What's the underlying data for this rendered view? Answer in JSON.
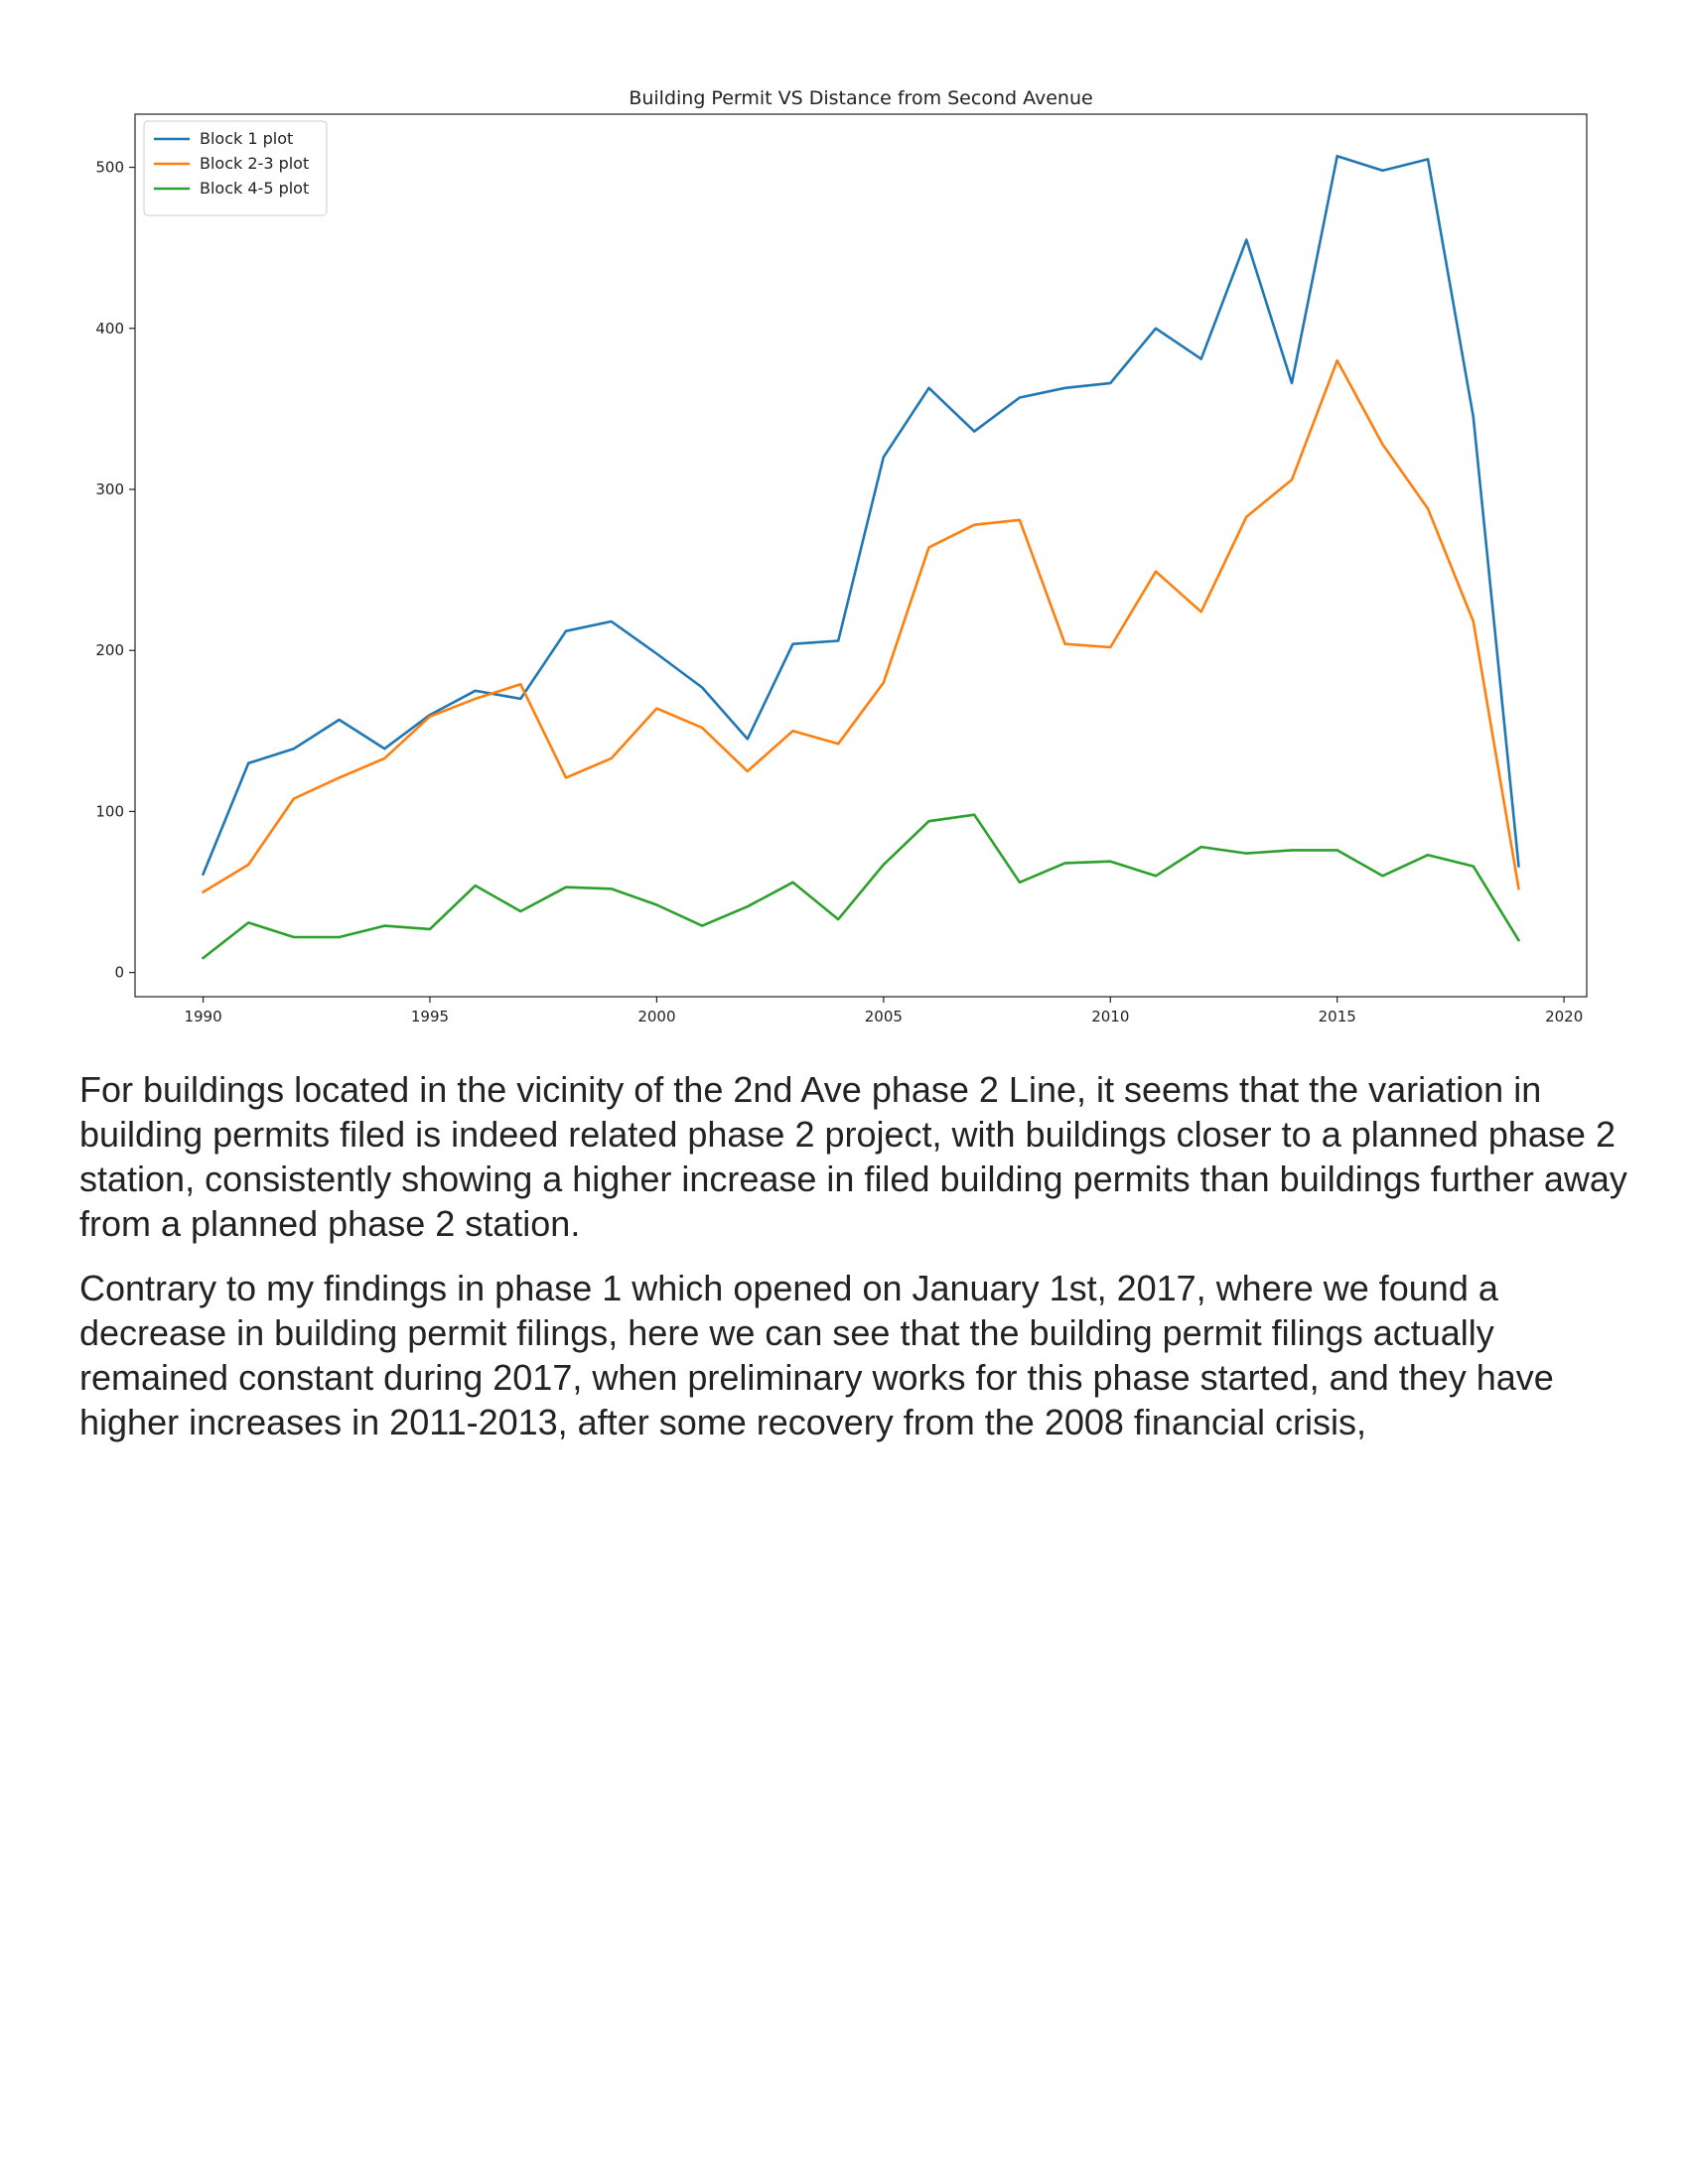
{
  "chart_data": {
    "type": "line",
    "title": "Building Permit VS Distance from Second Avenue",
    "xlabel": "",
    "ylabel": "",
    "xlim": [
      1988.5,
      2020.5
    ],
    "ylim": [
      -15,
      533
    ],
    "xticks": [
      1990,
      1995,
      2000,
      2005,
      2010,
      2015,
      2020
    ],
    "yticks": [
      0,
      100,
      200,
      300,
      400,
      500
    ],
    "grid": false,
    "legend_position": "top-left",
    "x": [
      1990,
      1991,
      1992,
      1993,
      1994,
      1995,
      1996,
      1997,
      1998,
      1999,
      2000,
      2001,
      2002,
      2003,
      2004,
      2005,
      2006,
      2007,
      2008,
      2009,
      2010,
      2011,
      2012,
      2013,
      2014,
      2015,
      2016,
      2017,
      2018,
      2019
    ],
    "series": [
      {
        "name": "Block 1 plot",
        "color": "#1f77b4",
        "values": [
          61,
          130,
          139,
          157,
          139,
          160,
          175,
          170,
          212,
          218,
          198,
          177,
          145,
          204,
          206,
          320,
          363,
          336,
          357,
          363,
          366,
          400,
          381,
          455,
          366,
          507,
          498,
          505,
          345,
          66
        ]
      },
      {
        "name": "Block 2-3 plot",
        "color": "#ff7f0e",
        "values": [
          50,
          67,
          108,
          121,
          133,
          159,
          170,
          179,
          121,
          133,
          164,
          152,
          125,
          150,
          142,
          180,
          264,
          278,
          281,
          204,
          202,
          249,
          224,
          283,
          306,
          380,
          328,
          288,
          218,
          52
        ]
      },
      {
        "name": "Block 4-5 plot",
        "color": "#2ca02c",
        "values": [
          9,
          31,
          22,
          22,
          29,
          27,
          54,
          38,
          53,
          52,
          42,
          29,
          41,
          56,
          33,
          67,
          94,
          98,
          56,
          68,
          69,
          60,
          78,
          74,
          76,
          76,
          60,
          73,
          66,
          20
        ]
      }
    ]
  },
  "body": {
    "paragraph_1": "For buildings located in the vicinity of the 2nd Ave phase 2 Line, it seems that the variation in building permits filed is indeed related phase 2 project, with buildings closer to a planned phase 2 station, consistently showing a higher increase in filed building permits than buildings further away from a planned phase 2 station.",
    "paragraph_2": "Contrary to my findings in phase 1 which opened on January 1st, 2017, where we found a decrease in building permit filings, here we can see that the building permit filings actually remained constant during 2017, when preliminary works for this phase started, and they have higher increases in 2011-2013, after some recovery from the 2008 financial crisis,"
  }
}
